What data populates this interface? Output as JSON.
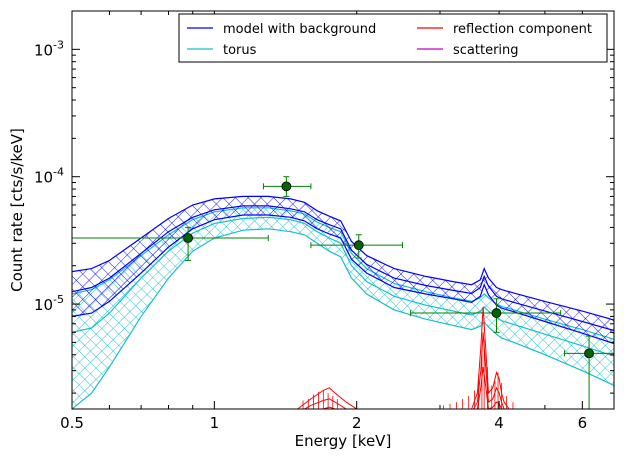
{
  "chart_data": {
    "type": "line",
    "xlabel": "Energy [keV]",
    "ylabel": "Count rate [cts/s/keV]",
    "xscale": "log",
    "yscale": "log",
    "xlim": [
      0.5,
      7.0
    ],
    "ylim": [
      1.5e-06,
      0.002
    ],
    "grid": false,
    "legend_placement": "top-right",
    "legend_columns": 2,
    "x_ticks": [
      {
        "value": 0.5,
        "label": "0.5"
      },
      {
        "value": 1,
        "label": "1"
      },
      {
        "value": 2,
        "label": "2"
      },
      {
        "value": 4,
        "label": "4"
      },
      {
        "value": 6,
        "label": "6"
      }
    ],
    "y_ticks": [
      {
        "value": 1e-05,
        "base": "10",
        "exp": "-5"
      },
      {
        "value": 0.0001,
        "base": "10",
        "exp": "-4"
      },
      {
        "value": 0.001,
        "base": "10",
        "exp": "-3"
      }
    ],
    "series": [
      {
        "name": "model with background",
        "color": "#0000ff",
        "style": "band-hatched",
        "x": [
          0.5,
          0.55,
          0.6,
          0.7,
          0.8,
          0.9,
          1.0,
          1.15,
          1.3,
          1.45,
          1.55,
          1.65,
          1.75,
          1.85,
          1.95,
          2.1,
          2.4,
          2.8,
          3.2,
          3.5,
          3.65,
          3.72,
          3.8,
          3.95,
          4.05,
          4.3,
          5.0,
          6.0,
          7.0
        ],
        "upper": [
          1.8e-05,
          1.9e-05,
          2.2e-05,
          3.3e-05,
          4.7e-05,
          6e-05,
          6.7e-05,
          7e-05,
          7e-05,
          6.7e-05,
          6.3e-05,
          5.4e-05,
          4.9e-05,
          4.5e-05,
          3.1e-05,
          2.4e-05,
          1.9e-05,
          1.65e-05,
          1.5e-05,
          1.42e-05,
          1.55e-05,
          1.9e-05,
          1.6e-05,
          1.35e-05,
          1.3e-05,
          1.22e-05,
          1.05e-05,
          8.8e-06,
          7.5e-06
        ],
        "mid": [
          1.25e-05,
          1.35e-05,
          1.6e-05,
          2.5e-05,
          3.7e-05,
          4.8e-05,
          5.5e-05,
          5.9e-05,
          5.9e-05,
          5.6e-05,
          5.3e-05,
          4.6e-05,
          4.2e-05,
          3.9e-05,
          2.65e-05,
          2.05e-05,
          1.6e-05,
          1.4e-05,
          1.28e-05,
          1.21e-05,
          1.35e-05,
          1.65e-05,
          1.38e-05,
          1.15e-05,
          1.1e-05,
          1.03e-05,
          8.8e-06,
          7.3e-06,
          6.2e-06
        ],
        "lower": [
          8e-06,
          8.5e-06,
          1.05e-05,
          1.75e-05,
          2.8e-05,
          3.9e-05,
          4.6e-05,
          5e-05,
          5e-05,
          4.8e-05,
          4.5e-05,
          3.9e-05,
          3.55e-05,
          3.3e-05,
          2.25e-05,
          1.75e-05,
          1.35e-05,
          1.2e-05,
          1.1e-05,
          1.03e-05,
          1.15e-05,
          1.42e-05,
          1.18e-05,
          9.8e-06,
          9.3e-06,
          8.7e-06,
          7.3e-06,
          5.9e-06,
          4.9e-06
        ]
      },
      {
        "name": "torus",
        "color": "#17becf",
        "style": "band-crosshatched",
        "x": [
          0.5,
          0.55,
          0.6,
          0.7,
          0.8,
          0.9,
          1.0,
          1.15,
          1.3,
          1.45,
          1.55,
          1.65,
          1.75,
          1.85,
          1.95,
          2.1,
          2.4,
          2.8,
          3.2,
          3.5,
          3.65,
          3.72,
          3.8,
          3.95,
          4.05,
          4.3,
          5.0,
          6.0,
          7.0
        ],
        "upper": [
          1.2e-05,
          1.3e-05,
          1.55e-05,
          2.4e-05,
          3.5e-05,
          4.6e-05,
          5.3e-05,
          5.7e-05,
          5.7e-05,
          5.4e-05,
          5.1e-05,
          4.4e-05,
          4e-05,
          3.7e-05,
          2.5e-05,
          1.9e-05,
          1.45e-05,
          1.25e-05,
          1.12e-05,
          1.05e-05,
          1.12e-05,
          1.2e-05,
          1.12e-05,
          1e-05,
          9.6e-06,
          9e-06,
          7.6e-06,
          6.3e-06,
          5.3e-06
        ],
        "mid": [
          6e-06,
          6.5e-06,
          8.5e-06,
          1.6e-05,
          2.6e-05,
          3.6e-05,
          4.3e-05,
          4.7e-05,
          4.8e-05,
          4.6e-05,
          4.3e-05,
          3.7e-05,
          3.3e-05,
          3e-05,
          2e-05,
          1.5e-05,
          1.15e-05,
          9.8e-06,
          8.8e-06,
          8.2e-06,
          8.8e-06,
          9.5e-06,
          8.8e-06,
          7.8e-06,
          7.4e-06,
          6.9e-06,
          5.8e-06,
          4.7e-06,
          3.9e-06
        ],
        "lower": [
          1.5e-06,
          2e-06,
          3.2e-06,
          8e-06,
          1.6e-05,
          2.6e-05,
          3.3e-05,
          3.8e-05,
          3.9e-05,
          3.7e-05,
          3.5e-05,
          3e-05,
          2.6e-05,
          2.35e-05,
          1.6e-05,
          1.2e-05,
          9e-06,
          7.6e-06,
          6.8e-06,
          6.3e-06,
          6.7e-06,
          7.2e-06,
          6.6e-06,
          5.8e-06,
          5.4e-06,
          5e-06,
          4e-06,
          3e-06,
          2.3e-06
        ]
      },
      {
        "name": "reflection component",
        "color": "#ff0000",
        "style": "lines",
        "x": [
          1.5,
          1.6,
          1.7,
          1.75,
          1.8,
          1.9,
          2.0,
          2.2,
          3.2,
          3.5,
          3.6,
          3.66,
          3.7,
          3.74,
          3.8,
          3.88,
          3.95,
          4.0,
          4.05,
          4.1,
          4.2,
          4.4
        ],
        "curves": [
          [
            1.5e-06,
            1.8e-06,
            2.1e-06,
            2.2e-06,
            2e-06,
            1.7e-06,
            1.5e-06,
            1.4e-06,
            1.4e-06,
            1.5e-06,
            2e-06,
            4.5e-06,
            9.5e-06,
            5e-06,
            2e-06,
            2.2e-06,
            2.9e-06,
            2.6e-06,
            2e-06,
            1.7e-06,
            1.5e-06,
            1.4e-06
          ],
          [
            1.4e-06,
            1.6e-06,
            1.75e-06,
            1.8e-06,
            1.7e-06,
            1.5e-06,
            1.4e-06,
            1.3e-06,
            1.3e-06,
            1.4e-06,
            1.7e-06,
            3e-06,
            6e-06,
            3.5e-06,
            1.7e-06,
            1.8e-06,
            2.2e-06,
            2e-06,
            1.7e-06,
            1.5e-06,
            1.4e-06,
            1.3e-06
          ],
          [
            1.3e-06,
            1.4e-06,
            1.5e-06,
            1.55e-06,
            1.5e-06,
            1.4e-06,
            1.3e-06,
            1.2e-06,
            1.2e-06,
            1.3e-06,
            1.5e-06,
            2.2e-06,
            3.2e-06,
            2.4e-06,
            1.5e-06,
            1.55e-06,
            1.7e-06,
            1.65e-06,
            1.5e-06,
            1.4e-06,
            1.3e-06,
            1.2e-06
          ]
        ]
      },
      {
        "name": "scattering",
        "color": "#bf00bf",
        "style": "line",
        "x": [],
        "y": []
      }
    ],
    "data_points": {
      "color": "#008000",
      "marker_fill": "#006400",
      "points": [
        {
          "x": 0.88,
          "y": 3.3e-05,
          "xlo": 0.5,
          "xhi": 1.3,
          "ylo": 2.2e-05,
          "yhi": 4e-05
        },
        {
          "x": 1.42,
          "y": 8.4e-05,
          "xlo": 1.27,
          "xhi": 1.6,
          "ylo": 7e-05,
          "yhi": 0.0001
        },
        {
          "x": 2.02,
          "y": 2.9e-05,
          "xlo": 1.6,
          "xhi": 2.5,
          "ylo": 2.3e-05,
          "yhi": 3.5e-05
        },
        {
          "x": 3.95,
          "y": 8.5e-06,
          "xlo": 2.6,
          "xhi": 5.4,
          "ylo": 6e-06,
          "yhi": 1.1e-05
        },
        {
          "x": 6.2,
          "y": 4.1e-06,
          "xlo": 5.5,
          "xhi": 7.0,
          "ylo": 1.5e-06,
          "yhi": 5.6e-06
        }
      ]
    },
    "reflection_spikes": {
      "color": "#ff0000",
      "x": [
        1.54,
        1.58,
        1.62,
        1.66,
        1.7,
        1.74,
        1.78,
        1.82,
        3.05,
        3.15,
        3.25,
        3.35,
        3.45,
        3.55,
        3.62,
        3.68,
        3.72,
        3.78,
        3.86,
        3.92,
        3.98,
        4.05,
        4.15,
        4.28
      ],
      "y": [
        1.75e-06,
        1.8e-06,
        1.95e-06,
        2.05e-06,
        2.1e-06,
        2e-06,
        1.9e-06,
        1.8e-06,
        1.6e-06,
        1.65e-06,
        1.7e-06,
        1.8e-06,
        1.9e-06,
        2.1e-06,
        2.6e-06,
        4e-06,
        5.2e-06,
        3.2e-06,
        2.3e-06,
        2.5e-06,
        2.9e-06,
        2.4e-06,
        1.9e-06,
        1.7e-06
      ]
    }
  }
}
